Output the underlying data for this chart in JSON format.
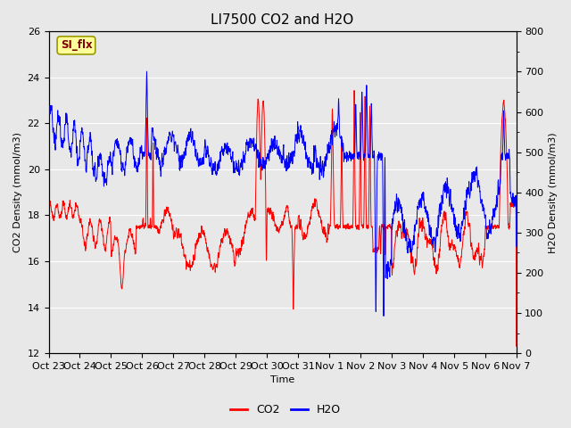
{
  "title": "LI7500 CO2 and H2O",
  "xlabel": "Time",
  "ylabel_left": "CO2 Density (mmol/m3)",
  "ylabel_right": "H2O Density (mmol/m3)",
  "ylim_left": [
    12,
    26
  ],
  "ylim_right": [
    0,
    800
  ],
  "yticks_left": [
    12,
    14,
    16,
    18,
    20,
    22,
    24,
    26
  ],
  "yticks_right": [
    0,
    100,
    200,
    300,
    400,
    500,
    600,
    700,
    800
  ],
  "x_tick_labels": [
    "Oct 23",
    "Oct 24",
    "Oct 25",
    "Oct 26",
    "Oct 27",
    "Oct 28",
    "Oct 29",
    "Oct 30",
    "Oct 31",
    "Nov 1",
    "Nov 2",
    "Nov 3",
    "Nov 4",
    "Nov 5",
    "Nov 6",
    "Nov 7"
  ],
  "co2_color": "#FF0000",
  "h2o_color": "#0000FF",
  "fig_bg_color": "#E8E8E8",
  "plot_bg_color": "#E8E8E8",
  "grid_color": "#FFFFFF",
  "annotation_text": "SI_flx",
  "annotation_fg": "#800000",
  "annotation_bg": "#FFFF99",
  "annotation_border": "#CCAA00",
  "legend_co2": "CO2",
  "legend_h2o": "H2O",
  "title_fontsize": 11,
  "axis_label_fontsize": 8,
  "tick_fontsize": 8,
  "legend_fontsize": 9
}
